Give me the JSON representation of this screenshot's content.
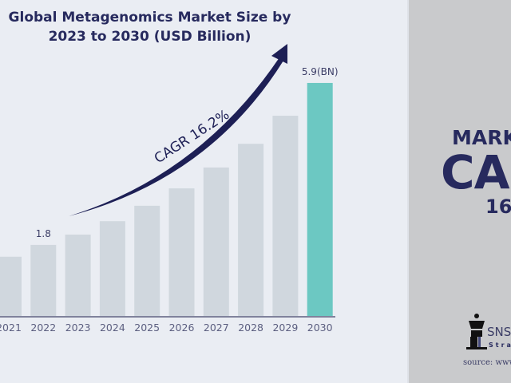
{
  "chart_data": {
    "type": "bar",
    "title": "Global Metagenomics Market Size by 2023 to 2030 (USD Billion)",
    "categories": [
      "2021",
      "2022",
      "2023",
      "2024",
      "2025",
      "2026",
      "2027",
      "2028",
      "2029",
      "2030"
    ],
    "values": [
      1.5,
      1.8,
      2.06,
      2.4,
      2.79,
      3.23,
      3.76,
      4.36,
      5.07,
      5.9
    ],
    "data_labels": {
      "2022": "1.8",
      "2030": "5.9(BN)"
    },
    "annotation": "CAGR 16.2%",
    "colors": {
      "bar": "#d0d7de",
      "highlight": "#6cc8c2",
      "text": "#272a5e",
      "axis": "#5c5f80"
    },
    "grid": false
  },
  "side_panel": {
    "line1": "MARK",
    "line2": "CA",
    "line3": "16.",
    "logo_text": "SNS",
    "logo_sub": "Stra",
    "source": "source: www"
  }
}
